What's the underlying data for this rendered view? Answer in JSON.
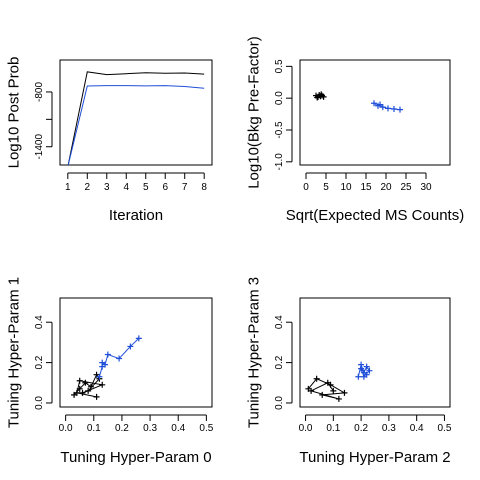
{
  "chart_data": [
    {
      "type": "line",
      "xlabel": "Iteration",
      "ylabel": "Log10 Post Prob",
      "xlim": [
        0.6,
        8.4
      ],
      "ylim": [
        -1600,
        -450
      ],
      "xticks": [
        1,
        2,
        3,
        4,
        5,
        6,
        7,
        8
      ],
      "yticks": [
        -1400,
        -1100,
        -800
      ],
      "ytick_labels": [
        "-1400",
        "",
        "-800"
      ],
      "x": [
        1,
        2,
        3,
        4,
        5,
        6,
        7,
        8
      ],
      "series": [
        {
          "color": "#000000",
          "values": [
            -1620,
            -580,
            -610,
            -600,
            -590,
            -595,
            -592,
            -605
          ]
        },
        {
          "color": "#1f4fd8",
          "values": [
            -1620,
            -735,
            -730,
            -730,
            -734,
            -730,
            -740,
            -760
          ]
        }
      ]
    },
    {
      "type": "scatter",
      "xlabel": "Sqrt(Expected MS Counts)",
      "ylabel": "Log10(Bkg Pre-Factor)",
      "xlim": [
        -1.5,
        36
      ],
      "ylim": [
        -1.05,
        0.6
      ],
      "xticks": [
        0,
        5,
        10,
        15,
        20,
        25,
        30
      ],
      "yticks": [
        -1.0,
        -0.5,
        0.0,
        0.5
      ],
      "xtick_labels": [
        "0",
        "5",
        "10",
        "15",
        "20",
        "25",
        "30"
      ],
      "ytick_labels": [
        "-1.0",
        "-0.5",
        "0.0",
        "0.5"
      ],
      "series": [
        {
          "color": "#000000",
          "connected": false,
          "points": [
            [
              2.5,
              0.04
            ],
            [
              3.0,
              0.02
            ],
            [
              3.3,
              0.05
            ],
            [
              3.6,
              0.03
            ],
            [
              4.0,
              0.04
            ],
            [
              4.4,
              0.02
            ],
            [
              2.8,
              0.01
            ],
            [
              3.8,
              0.06
            ]
          ]
        },
        {
          "color": "#1f4fd8",
          "connected": true,
          "points": [
            [
              17,
              -0.08
            ],
            [
              18,
              -0.12
            ],
            [
              18.5,
              -0.1
            ],
            [
              19.2,
              -0.14
            ],
            [
              20.5,
              -0.16
            ],
            [
              22,
              -0.17
            ],
            [
              23.5,
              -0.18
            ]
          ]
        }
      ]
    },
    {
      "type": "scatter",
      "xlabel": "Tuning Hyper-Param 0",
      "ylabel": "Tuning Hyper-Param 1",
      "xlim": [
        -0.02,
        0.52
      ],
      "ylim": [
        -0.02,
        0.52
      ],
      "xticks": [
        0.0,
        0.1,
        0.2,
        0.3,
        0.4,
        0.5
      ],
      "yticks": [
        0.0,
        0.2,
        0.4
      ],
      "xtick_labels": [
        "0.0",
        "0.1",
        "0.2",
        "0.3",
        "0.4",
        "0.5"
      ],
      "ytick_labels": [
        "0.0",
        "0.2",
        "0.4"
      ],
      "series": [
        {
          "color": "#000000",
          "connected": true,
          "points": [
            [
              0.03,
              0.04
            ],
            [
              0.05,
              0.07
            ],
            [
              0.07,
              0.1
            ],
            [
              0.09,
              0.08
            ],
            [
              0.11,
              0.14
            ],
            [
              0.12,
              0.12
            ],
            [
              0.08,
              0.06
            ],
            [
              0.06,
              0.05
            ],
            [
              0.13,
              0.09
            ],
            [
              0.05,
              0.11
            ],
            [
              0.04,
              0.05
            ],
            [
              0.11,
              0.03
            ]
          ]
        },
        {
          "color": "#1f4fd8",
          "connected": true,
          "points": [
            [
              0.12,
              0.13
            ],
            [
              0.13,
              0.18
            ],
            [
              0.13,
              0.2
            ],
            [
              0.14,
              0.19
            ],
            [
              0.15,
              0.24
            ],
            [
              0.19,
              0.22
            ],
            [
              0.23,
              0.28
            ],
            [
              0.26,
              0.32
            ]
          ]
        }
      ]
    },
    {
      "type": "scatter",
      "xlabel": "Tuning Hyper-Param 2",
      "ylabel": "Tuning Hyper-Param 3",
      "xlim": [
        -0.02,
        0.52
      ],
      "ylim": [
        -0.02,
        0.52
      ],
      "xticks": [
        0.0,
        0.1,
        0.2,
        0.3,
        0.4,
        0.5
      ],
      "yticks": [
        0.0,
        0.2,
        0.4
      ],
      "xtick_labels": [
        "0.0",
        "0.1",
        "0.2",
        "0.3",
        "0.4",
        "0.5"
      ],
      "ytick_labels": [
        "0.0",
        "0.2",
        "0.4"
      ],
      "series": [
        {
          "color": "#000000",
          "connected": true,
          "points": [
            [
              0.01,
              0.07
            ],
            [
              0.04,
              0.12
            ],
            [
              0.09,
              0.09
            ],
            [
              0.14,
              0.05
            ],
            [
              0.06,
              0.04
            ],
            [
              0.12,
              0.02
            ],
            [
              0.02,
              0.06
            ],
            [
              0.08,
              0.1
            ],
            [
              0.1,
              0.06
            ]
          ]
        },
        {
          "color": "#1f4fd8",
          "connected": true,
          "points": [
            [
              0.19,
              0.13
            ],
            [
              0.2,
              0.19
            ],
            [
              0.21,
              0.15
            ],
            [
              0.22,
              0.18
            ],
            [
              0.23,
              0.16
            ],
            [
              0.21,
              0.13
            ],
            [
              0.2,
              0.17
            ],
            [
              0.22,
              0.14
            ]
          ]
        }
      ]
    }
  ]
}
